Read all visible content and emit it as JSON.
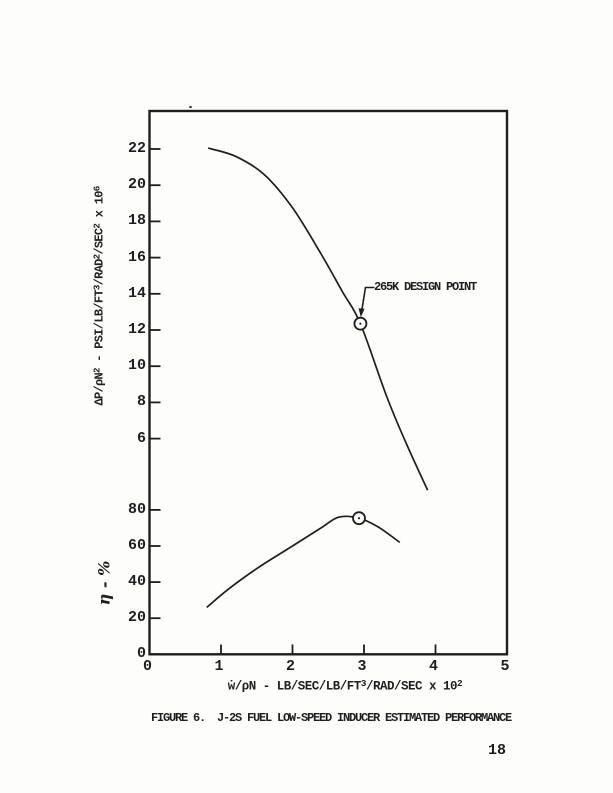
{
  "page": {
    "number": "18",
    "ink": "#1e1e1e",
    "paper": "#fdfdfc"
  },
  "figure": {
    "caption": "FIGURE 6.  J-2S FUEL LOW-SPEED INDUCER ESTIMATED PERFORMANCE"
  },
  "chart_data": {
    "type": "line",
    "x_axis": {
      "label": "ẇ/ρN - LB/SEC/LB/FT³/RAD/SEC x 10²",
      "range": [
        0,
        5
      ],
      "ticks": [
        0,
        1,
        2,
        3,
        4,
        5
      ]
    },
    "upper": {
      "ylabel": "ΔP/ρN² - PSI/LB/FT³/RAD²/SEC² x 10⁶",
      "ticks": [
        22,
        20,
        18,
        16,
        14,
        12,
        10,
        8,
        6
      ],
      "series": [
        [
          0.82,
          22.05
        ],
        [
          1.2,
          21.6
        ],
        [
          1.6,
          20.6
        ],
        [
          2.0,
          18.75
        ],
        [
          2.4,
          16.2
        ],
        [
          2.7,
          14.1
        ],
        [
          2.95,
          12.35
        ],
        [
          3.32,
          8.3
        ],
        [
          3.6,
          5.65
        ],
        [
          3.89,
          3.15
        ]
      ]
    },
    "lower": {
      "ylabel": "η - %",
      "ticks": [
        80,
        60,
        40,
        20,
        0
      ],
      "series": [
        [
          0.8,
          26
        ],
        [
          1.1,
          36
        ],
        [
          1.5,
          47.5
        ],
        [
          2.0,
          60
        ],
        [
          2.4,
          70
        ],
        [
          2.65,
          76
        ],
        [
          2.93,
          75.4
        ],
        [
          3.2,
          70.5
        ],
        [
          3.5,
          62
        ]
      ]
    },
    "annotation": {
      "label": "265K DESIGN POINT",
      "upper_point": [
        2.95,
        12.35
      ],
      "lower_point": [
        2.93,
        75.4
      ]
    }
  }
}
